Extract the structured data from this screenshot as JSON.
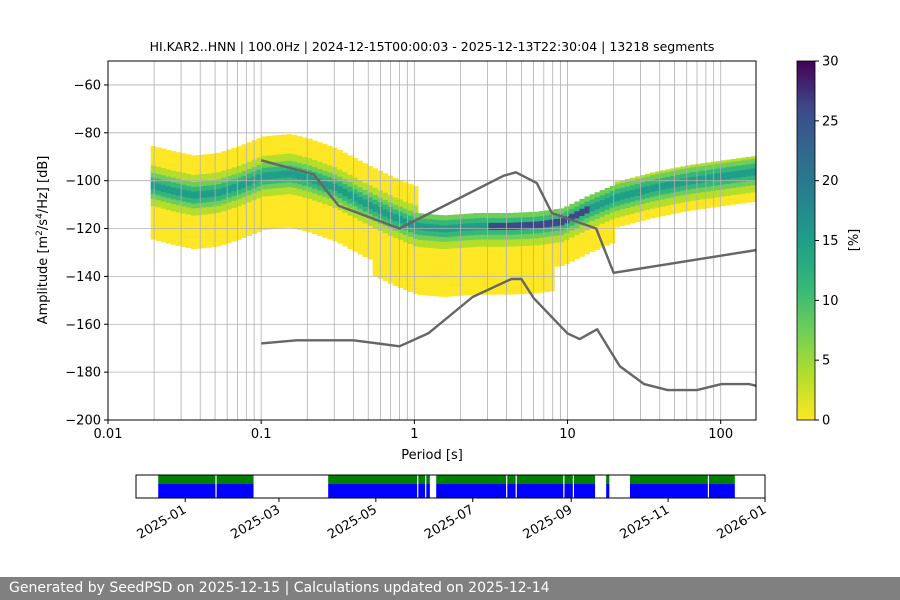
{
  "footer_text": "Generated by SeedPSD on 2025-12-15 | Calculations updated on 2025-12-14",
  "chart_data": [
    {
      "type": "heatmap",
      "title": "HI.KAR2..HNN | 100.0Hz | 2024-12-15T00:00:03 - 2025-12-13T22:30:04 | 13218 segments",
      "xlabel": "Period [s]",
      "ylabel_base": "Amplitude [m",
      "ylabel_sup1": "2",
      "ylabel_mid": "/s",
      "ylabel_sup2": "4",
      "ylabel_end": "/Hz] [dB]",
      "x_scale": "log",
      "xlim": [
        0.01,
        170
      ],
      "ylim": [
        -200,
        -50
      ],
      "x_ticks": [
        0.01,
        0.1,
        1,
        10,
        100
      ],
      "x_tick_labels": [
        "0.01",
        "0.1",
        "1",
        "10",
        "100"
      ],
      "y_ticks": [
        -60,
        -80,
        -100,
        -120,
        -140,
        -160,
        -180,
        -200
      ],
      "y_tick_labels": [
        "−60",
        "−80",
        "−100",
        "−120",
        "−140",
        "−160",
        "−180",
        "−200"
      ],
      "grid": true,
      "colorbar": {
        "label": "[%]",
        "range": [
          0,
          30
        ],
        "ticks": [
          0,
          5,
          10,
          15,
          20,
          25,
          30
        ],
        "tick_labels": [
          "0",
          "5",
          "10",
          "15",
          "20",
          "25",
          "30"
        ],
        "colormap": "viridis"
      },
      "series": [
        {
          "name": "",
          "role": "high noise model",
          "color": "#666666",
          "points": [
            [
              0.1,
              -91.5
            ],
            [
              0.22,
              -97.4
            ],
            [
              0.32,
              -110.5
            ],
            [
              0.8,
              -120.0
            ],
            [
              3.8,
              -98.0
            ],
            [
              4.6,
              -96.5
            ],
            [
              6.3,
              -101.0
            ],
            [
              7.9,
              -113.5
            ],
            [
              15.4,
              -120.0
            ],
            [
              20.0,
              -138.5
            ],
            [
              170,
              -129.0
            ]
          ]
        },
        {
          "name": "",
          "role": "low noise model",
          "color": "#666666",
          "points": [
            [
              0.1,
              -168.0
            ],
            [
              0.17,
              -166.7
            ],
            [
              0.4,
              -166.7
            ],
            [
              0.8,
              -169.2
            ],
            [
              1.24,
              -163.7
            ],
            [
              2.4,
              -148.6
            ],
            [
              4.3,
              -141.1
            ],
            [
              5.0,
              -141.1
            ],
            [
              6.0,
              -149.0
            ],
            [
              10.0,
              -163.8
            ],
            [
              12.0,
              -166.2
            ],
            [
              15.6,
              -162.1
            ],
            [
              21.9,
              -177.5
            ],
            [
              31.6,
              -185.0
            ],
            [
              45.0,
              -187.5
            ],
            [
              70.0,
              -187.5
            ],
            [
              101.0,
              -185.0
            ],
            [
              154.0,
              -185.0
            ],
            [
              170,
              -185.7
            ]
          ]
        }
      ],
      "psd_mode_curve": {
        "description_free": true,
        "points": [
          [
            0.019,
            -102
          ],
          [
            0.025,
            -104
          ],
          [
            0.035,
            -106
          ],
          [
            0.05,
            -105
          ],
          [
            0.07,
            -102
          ],
          [
            0.1,
            -98
          ],
          [
            0.15,
            -97
          ],
          [
            0.2,
            -99
          ],
          [
            0.3,
            -103
          ],
          [
            0.45,
            -109
          ],
          [
            0.7,
            -115
          ],
          [
            1.0,
            -119
          ],
          [
            1.5,
            -120
          ],
          [
            2.5,
            -119
          ],
          [
            4.0,
            -119
          ],
          [
            6.0,
            -118.5
          ],
          [
            9.0,
            -117
          ],
          [
            13.0,
            -112
          ],
          [
            20.0,
            -107
          ],
          [
            35.0,
            -103
          ],
          [
            60.0,
            -100
          ],
          [
            100.0,
            -98
          ],
          [
            170.0,
            -96
          ]
        ]
      }
    },
    {
      "type": "timeline",
      "x_tick_labels": [
        "2025-01",
        "2025-03",
        "2025-05",
        "2025-07",
        "2025-09",
        "2025-11",
        "2026-01"
      ],
      "x_ticks": [
        "2025-01-01",
        "2025-03-01",
        "2025-05-01",
        "2025-07-01",
        "2025-09-01",
        "2025-11-01",
        "2026-01-01"
      ],
      "xlim": [
        "2024-12-01",
        "2026-01-01"
      ],
      "colors": {
        "top": "#008000",
        "bottom": "#0000ff"
      },
      "available_spans": [
        [
          "2024-12-15",
          "2025-02-13"
        ],
        [
          "2025-04-01",
          "2025-06-04"
        ],
        [
          "2025-06-08",
          "2025-09-16"
        ],
        [
          "2025-09-23",
          "2025-09-25"
        ],
        [
          "2025-10-08",
          "2025-12-13"
        ]
      ],
      "gaps_within_spans": [
        "2025-01-20",
        "2025-05-27",
        "2025-06-01",
        "2025-07-22",
        "2025-07-28",
        "2025-08-27",
        "2025-09-02",
        "2025-11-26"
      ]
    }
  ]
}
